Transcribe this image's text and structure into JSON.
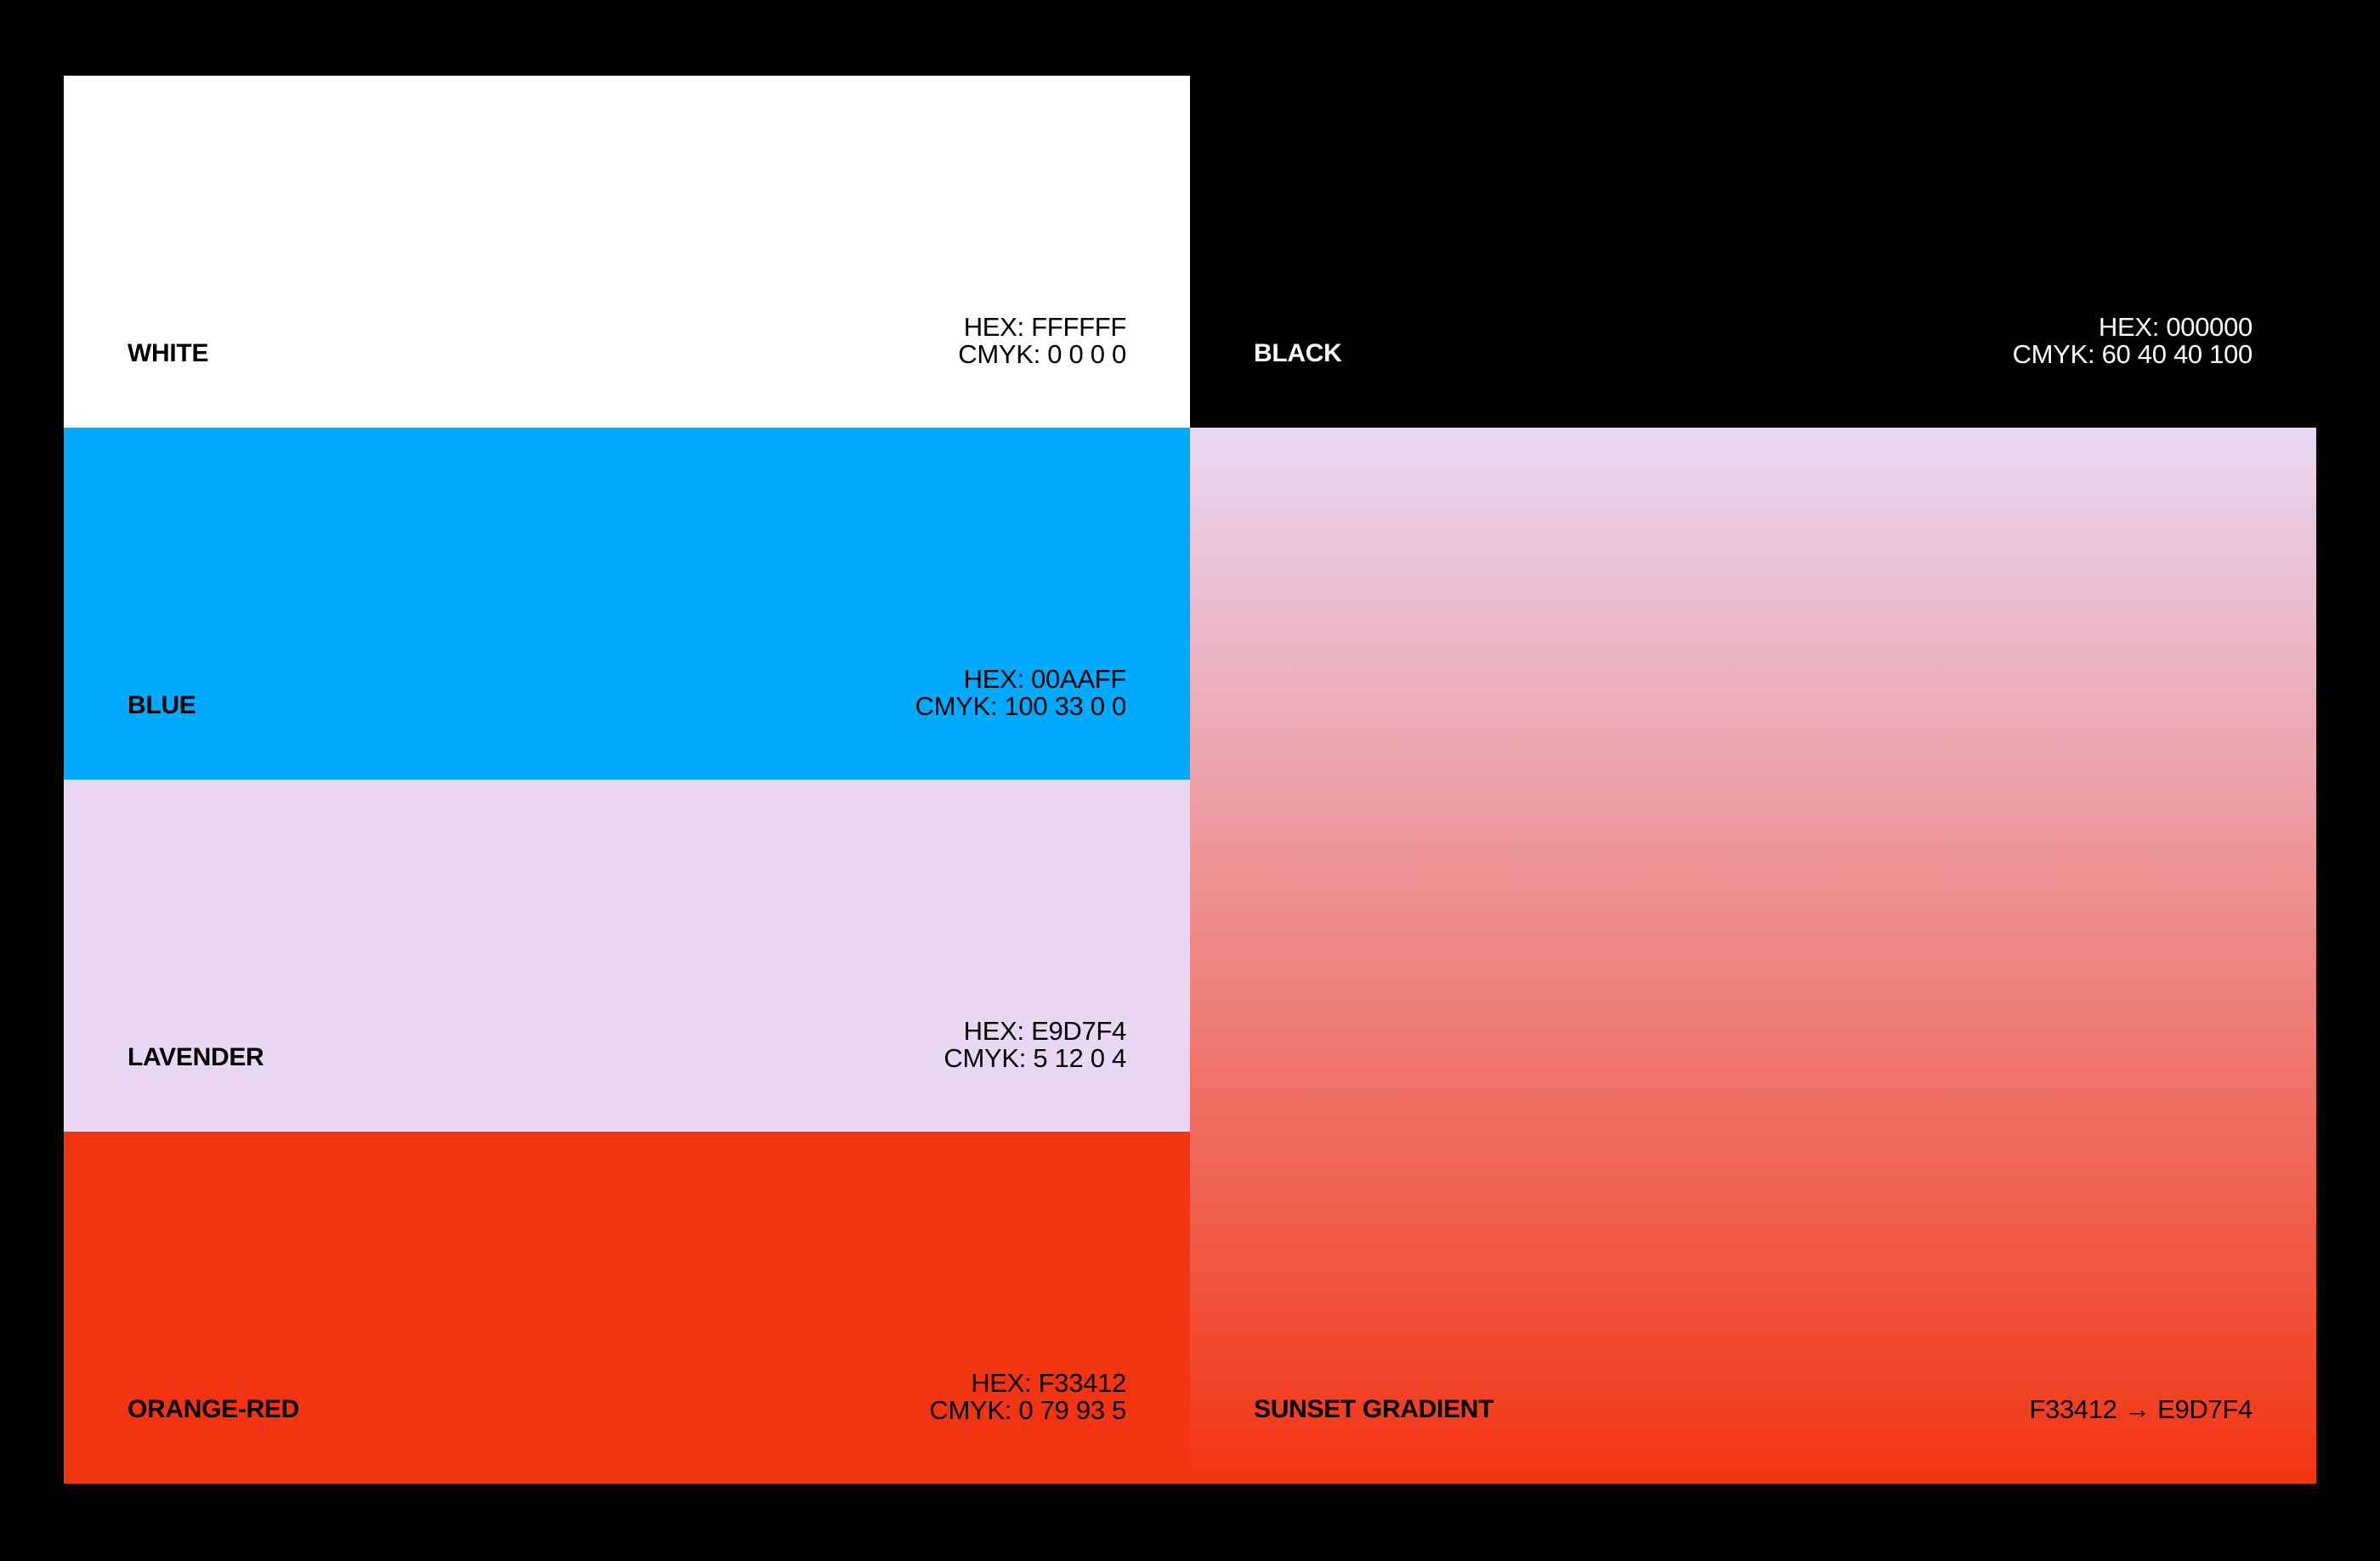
{
  "swatches": {
    "white": {
      "name": "WHITE",
      "hex": "HEX: FFFFFF",
      "cmyk": "CMYK: 0 0 0 0",
      "color": "#FFFFFF",
      "text_color": "#000000"
    },
    "blue": {
      "name": "BLUE",
      "hex": "HEX: 00AAFF",
      "cmyk": "CMYK: 100 33 0 0",
      "color": "#00AAFF",
      "text_color": "#000000"
    },
    "lavender": {
      "name": "LAVENDER",
      "hex": "HEX: E9D7F4",
      "cmyk": "CMYK: 5 12 0 4",
      "color": "#E9D7F4",
      "text_color": "#000000"
    },
    "orange_red": {
      "name": "ORANGE-RED",
      "hex": "HEX: F33412",
      "cmyk": "CMYK: 0 79 93 5",
      "color": "#F33412",
      "text_color": "#000000"
    },
    "black": {
      "name": "BLACK",
      "hex": "HEX: 000000",
      "cmyk": "CMYK: 60 40 40 100",
      "color": "#000000",
      "text_color": "#FFFFFF"
    }
  },
  "gradient": {
    "name": "SUNSET GRADIENT",
    "codes": "F33412 → E9D7F4",
    "color_top": "#E9D7F4",
    "color_bottom": "#F33412",
    "text_color": "#000000"
  }
}
